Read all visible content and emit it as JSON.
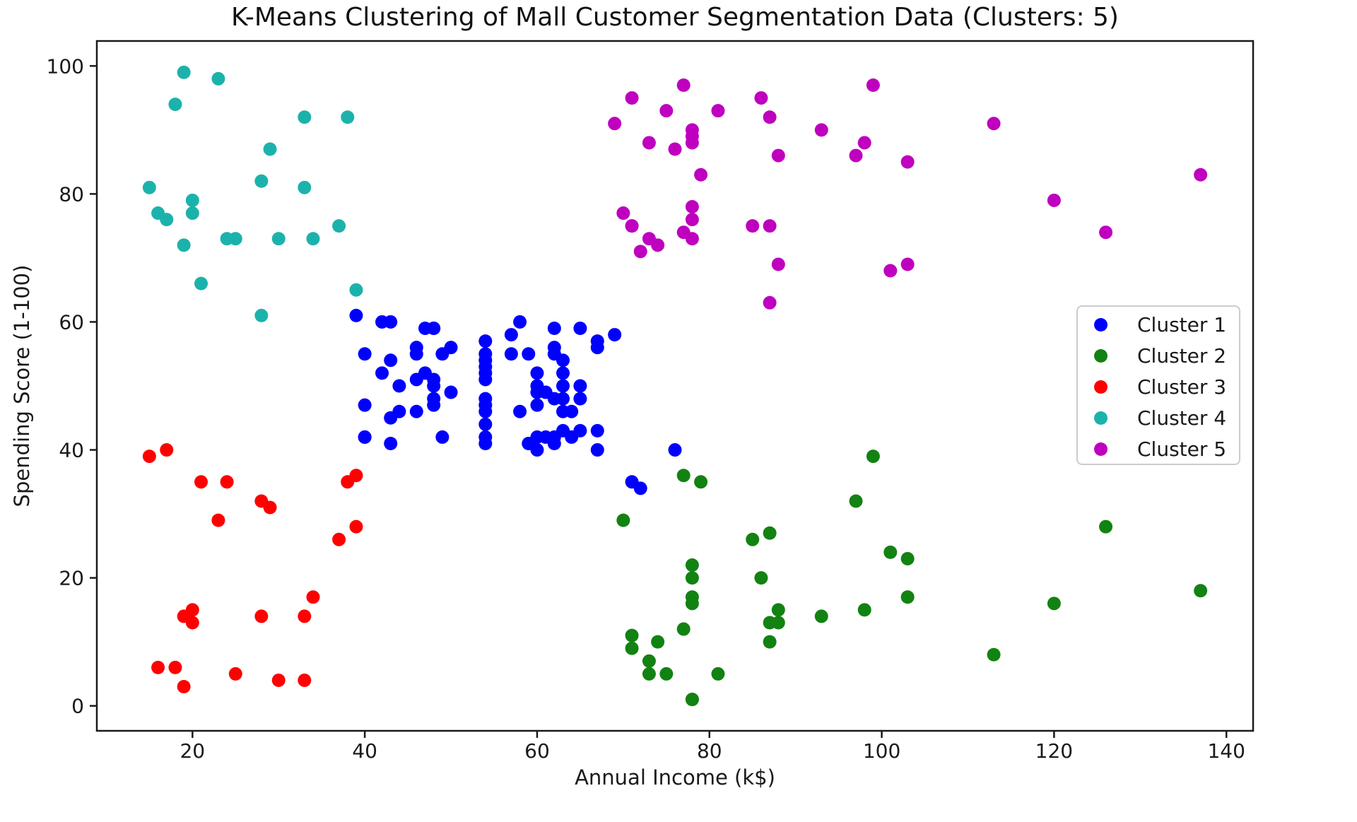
{
  "chart_data": {
    "type": "scatter",
    "title": "K-Means Clustering of Mall Customer Segmentation Data (Clusters: 5)",
    "xlabel": "Annual Income (k$)",
    "ylabel": "Spending Score (1-100)",
    "xlim": [
      8.9,
      143.1
    ],
    "ylim": [
      -3.9,
      103.9
    ],
    "x_ticks": [
      20,
      40,
      60,
      80,
      100,
      120,
      140
    ],
    "y_ticks": [
      0,
      20,
      40,
      60,
      80,
      100
    ],
    "grid": false,
    "legend_position": "center right",
    "background": "#ffffff",
    "axis_color": "#1a1a1a",
    "marker_radius_px": 9.5,
    "series": [
      {
        "name": "Cluster 1",
        "color": "#0000ff",
        "points": [
          [
            39,
            61
          ],
          [
            40,
            55
          ],
          [
            40,
            47
          ],
          [
            40,
            42
          ],
          [
            40,
            42
          ],
          [
            42,
            52
          ],
          [
            42,
            60
          ],
          [
            43,
            54
          ],
          [
            43,
            60
          ],
          [
            43,
            45
          ],
          [
            43,
            41
          ],
          [
            44,
            50
          ],
          [
            44,
            46
          ],
          [
            46,
            51
          ],
          [
            46,
            46
          ],
          [
            46,
            56
          ],
          [
            46,
            55
          ],
          [
            47,
            52
          ],
          [
            47,
            59
          ],
          [
            48,
            51
          ],
          [
            48,
            59
          ],
          [
            48,
            50
          ],
          [
            48,
            48
          ],
          [
            48,
            59
          ],
          [
            48,
            47
          ],
          [
            49,
            55
          ],
          [
            49,
            42
          ],
          [
            50,
            49
          ],
          [
            50,
            56
          ],
          [
            54,
            47
          ],
          [
            54,
            54
          ],
          [
            54,
            53
          ],
          [
            54,
            48
          ],
          [
            54,
            52
          ],
          [
            54,
            42
          ],
          [
            54,
            51
          ],
          [
            54,
            55
          ],
          [
            54,
            41
          ],
          [
            54,
            44
          ],
          [
            54,
            57
          ],
          [
            54,
            46
          ],
          [
            57,
            58
          ],
          [
            57,
            55
          ],
          [
            58,
            60
          ],
          [
            58,
            46
          ],
          [
            59,
            55
          ],
          [
            59,
            41
          ],
          [
            60,
            49
          ],
          [
            60,
            40
          ],
          [
            60,
            42
          ],
          [
            60,
            52
          ],
          [
            60,
            47
          ],
          [
            60,
            50
          ],
          [
            61,
            42
          ],
          [
            61,
            49
          ],
          [
            62,
            41
          ],
          [
            62,
            48
          ],
          [
            62,
            59
          ],
          [
            62,
            55
          ],
          [
            62,
            56
          ],
          [
            62,
            42
          ],
          [
            63,
            50
          ],
          [
            63,
            46
          ],
          [
            63,
            43
          ],
          [
            63,
            48
          ],
          [
            63,
            52
          ],
          [
            63,
            54
          ],
          [
            64,
            42
          ],
          [
            64,
            46
          ],
          [
            65,
            48
          ],
          [
            65,
            50
          ],
          [
            65,
            43
          ],
          [
            65,
            59
          ],
          [
            67,
            43
          ],
          [
            67,
            57
          ],
          [
            67,
            56
          ],
          [
            67,
            40
          ],
          [
            69,
            58
          ],
          [
            71,
            35
          ],
          [
            72,
            34
          ],
          [
            76,
            40
          ]
        ]
      },
      {
        "name": "Cluster 2",
        "color": "#128212",
        "points": [
          [
            70,
            29
          ],
          [
            71,
            11
          ],
          [
            71,
            9
          ],
          [
            73,
            5
          ],
          [
            73,
            7
          ],
          [
            74,
            10
          ],
          [
            75,
            5
          ],
          [
            77,
            12
          ],
          [
            77,
            36
          ],
          [
            78,
            22
          ],
          [
            78,
            17
          ],
          [
            78,
            20
          ],
          [
            78,
            16
          ],
          [
            78,
            1
          ],
          [
            78,
            1
          ],
          [
            79,
            35
          ],
          [
            81,
            5
          ],
          [
            85,
            26
          ],
          [
            86,
            20
          ],
          [
            87,
            27
          ],
          [
            87,
            13
          ],
          [
            87,
            10
          ],
          [
            88,
            13
          ],
          [
            88,
            15
          ],
          [
            93,
            14
          ],
          [
            97,
            32
          ],
          [
            98,
            15
          ],
          [
            99,
            39
          ],
          [
            101,
            24
          ],
          [
            103,
            17
          ],
          [
            103,
            23
          ],
          [
            113,
            8
          ],
          [
            120,
            16
          ],
          [
            126,
            28
          ],
          [
            137,
            18
          ]
        ]
      },
      {
        "name": "Cluster 3",
        "color": "#ff0000",
        "points": [
          [
            15,
            39
          ],
          [
            16,
            6
          ],
          [
            17,
            40
          ],
          [
            18,
            6
          ],
          [
            19,
            3
          ],
          [
            19,
            14
          ],
          [
            20,
            15
          ],
          [
            20,
            13
          ],
          [
            21,
            35
          ],
          [
            23,
            29
          ],
          [
            24,
            35
          ],
          [
            25,
            5
          ],
          [
            28,
            14
          ],
          [
            28,
            32
          ],
          [
            29,
            31
          ],
          [
            30,
            4
          ],
          [
            33,
            4
          ],
          [
            33,
            14
          ],
          [
            34,
            17
          ],
          [
            37,
            26
          ],
          [
            38,
            35
          ],
          [
            39,
            36
          ],
          [
            39,
            28
          ]
        ]
      },
      {
        "name": "Cluster 4",
        "color": "#1cb2ac",
        "points": [
          [
            15,
            81
          ],
          [
            16,
            77
          ],
          [
            17,
            76
          ],
          [
            18,
            94
          ],
          [
            19,
            72
          ],
          [
            19,
            99
          ],
          [
            20,
            77
          ],
          [
            20,
            79
          ],
          [
            21,
            66
          ],
          [
            23,
            98
          ],
          [
            24,
            73
          ],
          [
            25,
            73
          ],
          [
            28,
            82
          ],
          [
            28,
            61
          ],
          [
            29,
            87
          ],
          [
            30,
            73
          ],
          [
            33,
            92
          ],
          [
            33,
            81
          ],
          [
            34,
            73
          ],
          [
            37,
            75
          ],
          [
            38,
            92
          ],
          [
            39,
            65
          ]
        ]
      },
      {
        "name": "Cluster 5",
        "color": "#bf00bf",
        "points": [
          [
            69,
            91
          ],
          [
            70,
            77
          ],
          [
            71,
            95
          ],
          [
            71,
            75
          ],
          [
            71,
            75
          ],
          [
            72,
            71
          ],
          [
            73,
            88
          ],
          [
            73,
            73
          ],
          [
            74,
            72
          ],
          [
            75,
            93
          ],
          [
            76,
            87
          ],
          [
            77,
            97
          ],
          [
            77,
            74
          ],
          [
            78,
            90
          ],
          [
            78,
            88
          ],
          [
            78,
            76
          ],
          [
            78,
            89
          ],
          [
            78,
            78
          ],
          [
            78,
            73
          ],
          [
            79,
            83
          ],
          [
            81,
            93
          ],
          [
            85,
            75
          ],
          [
            86,
            95
          ],
          [
            87,
            63
          ],
          [
            87,
            75
          ],
          [
            87,
            92
          ],
          [
            88,
            86
          ],
          [
            88,
            69
          ],
          [
            93,
            90
          ],
          [
            97,
            86
          ],
          [
            98,
            88
          ],
          [
            99,
            97
          ],
          [
            101,
            68
          ],
          [
            103,
            85
          ],
          [
            103,
            69
          ],
          [
            113,
            91
          ],
          [
            120,
            79
          ],
          [
            126,
            74
          ],
          [
            137,
            83
          ]
        ]
      }
    ]
  }
}
